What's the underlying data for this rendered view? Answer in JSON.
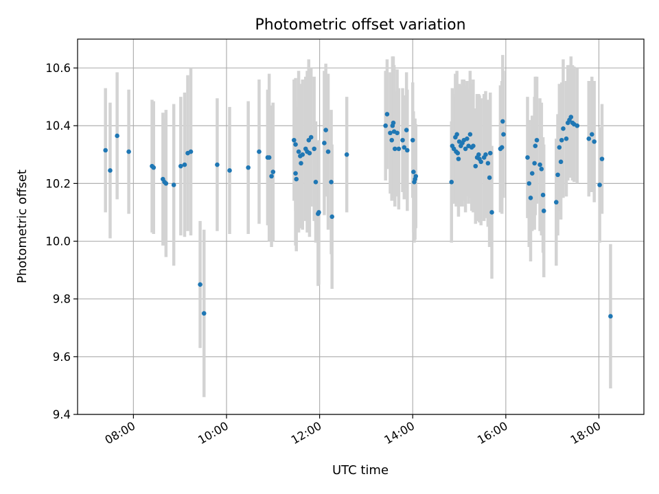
{
  "chart_data": {
    "type": "scatter",
    "title": "Photometric offset variation",
    "xlabel": "UTC time",
    "ylabel": "Photometric offset",
    "xlim": [
      "06:48",
      "18:58"
    ],
    "ylim": [
      9.4,
      10.7
    ],
    "xticks": [
      "08:00",
      "10:00",
      "12:00",
      "14:00",
      "16:00",
      "18:00"
    ],
    "yticks": [
      "9.4",
      "9.6",
      "9.8",
      "10.0",
      "10.2",
      "10.4",
      "10.6"
    ],
    "grid": true,
    "colors": {
      "points": "#1f77b4",
      "errorbars": "#d3d3d3",
      "grid": "#b0b0b0"
    },
    "points": [
      {
        "t": "07:24",
        "y": 10.315,
        "err": 0.215
      },
      {
        "t": "07:30",
        "y": 10.245,
        "err": 0.235
      },
      {
        "t": "07:39",
        "y": 10.365,
        "err": 0.22
      },
      {
        "t": "07:54",
        "y": 10.31,
        "err": 0.215
      },
      {
        "t": "08:24",
        "y": 10.26,
        "err": 0.23
      },
      {
        "t": "08:26",
        "y": 10.255,
        "err": 0.23
      },
      {
        "t": "08:38",
        "y": 10.215,
        "err": 0.23
      },
      {
        "t": "08:40",
        "y": 10.205,
        "err": 0.22
      },
      {
        "t": "08:42",
        "y": 10.2,
        "err": 0.255
      },
      {
        "t": "08:52",
        "y": 10.195,
        "err": 0.28
      },
      {
        "t": "09:01",
        "y": 10.26,
        "err": 0.24
      },
      {
        "t": "09:06",
        "y": 10.265,
        "err": 0.25
      },
      {
        "t": "09:10",
        "y": 10.305,
        "err": 0.27
      },
      {
        "t": "09:14",
        "y": 10.31,
        "err": 0.29
      },
      {
        "t": "09:26",
        "y": 9.85,
        "err": 0.22
      },
      {
        "t": "09:31",
        "y": 9.75,
        "err": 0.29
      },
      {
        "t": "09:48",
        "y": 10.265,
        "err": 0.23
      },
      {
        "t": "10:04",
        "y": 10.245,
        "err": 0.22
      },
      {
        "t": "10:28",
        "y": 10.255,
        "err": 0.23
      },
      {
        "t": "10:42",
        "y": 10.31,
        "err": 0.25
      },
      {
        "t": "10:53",
        "y": 10.29,
        "err": 0.235
      },
      {
        "t": "10:55",
        "y": 10.29,
        "err": 0.29
      },
      {
        "t": "10:58",
        "y": 10.225,
        "err": 0.245
      },
      {
        "t": "11:00",
        "y": 10.24,
        "err": 0.24
      },
      {
        "t": "11:27",
        "y": 10.35,
        "err": 0.21
      },
      {
        "t": "11:29",
        "y": 10.335,
        "err": 0.23
      },
      {
        "t": "11:29",
        "y": 10.235,
        "err": 0.25
      },
      {
        "t": "11:30",
        "y": 10.215,
        "err": 0.25
      },
      {
        "t": "11:33",
        "y": 10.31,
        "err": 0.28
      },
      {
        "t": "11:35",
        "y": 10.295,
        "err": 0.25
      },
      {
        "t": "11:36",
        "y": 10.27,
        "err": 0.2
      },
      {
        "t": "11:38",
        "y": 10.3,
        "err": 0.26
      },
      {
        "t": "11:42",
        "y": 10.32,
        "err": 0.25
      },
      {
        "t": "11:44",
        "y": 10.31,
        "err": 0.28
      },
      {
        "t": "11:46",
        "y": 10.35,
        "err": 0.28
      },
      {
        "t": "11:47",
        "y": 10.305,
        "err": 0.29
      },
      {
        "t": "11:49",
        "y": 10.36,
        "err": 0.24
      },
      {
        "t": "11:53",
        "y": 10.32,
        "err": 0.25
      },
      {
        "t": "11:55",
        "y": 10.205,
        "err": 0.21
      },
      {
        "t": "11:58",
        "y": 10.095,
        "err": 0.25
      },
      {
        "t": "11:59",
        "y": 10.1,
        "err": 0.25
      },
      {
        "t": "12:06",
        "y": 10.34,
        "err": 0.25
      },
      {
        "t": "12:08",
        "y": 10.385,
        "err": 0.23
      },
      {
        "t": "12:11",
        "y": 10.31,
        "err": 0.27
      },
      {
        "t": "12:15",
        "y": 10.205,
        "err": 0.25
      },
      {
        "t": "12:16",
        "y": 10.085,
        "err": 0.25
      },
      {
        "t": "12:35",
        "y": 10.3,
        "err": 0.2
      },
      {
        "t": "13:25",
        "y": 10.4,
        "err": 0.19
      },
      {
        "t": "13:27",
        "y": 10.44,
        "err": 0.19
      },
      {
        "t": "13:31",
        "y": 10.375,
        "err": 0.21
      },
      {
        "t": "13:33",
        "y": 10.35,
        "err": 0.21
      },
      {
        "t": "13:34",
        "y": 10.4,
        "err": 0.24
      },
      {
        "t": "13:35",
        "y": 10.41,
        "err": 0.23
      },
      {
        "t": "13:36",
        "y": 10.38,
        "err": 0.23
      },
      {
        "t": "13:37",
        "y": 10.32,
        "err": 0.2
      },
      {
        "t": "13:40",
        "y": 10.375,
        "err": 0.22
      },
      {
        "t": "13:42",
        "y": 10.32,
        "err": 0.21
      },
      {
        "t": "13:47",
        "y": 10.35,
        "err": 0.18
      },
      {
        "t": "13:49",
        "y": 10.325,
        "err": 0.18
      },
      {
        "t": "13:52",
        "y": 10.385,
        "err": 0.2
      },
      {
        "t": "13:53",
        "y": 10.315,
        "err": 0.21
      },
      {
        "t": "14:00",
        "y": 10.35,
        "err": 0.2
      },
      {
        "t": "14:01",
        "y": 10.24,
        "err": 0.21
      },
      {
        "t": "14:02",
        "y": 10.205,
        "err": 0.21
      },
      {
        "t": "14:03",
        "y": 10.215,
        "err": 0.21
      },
      {
        "t": "14:04",
        "y": 10.225,
        "err": 0.18
      },
      {
        "t": "14:50",
        "y": 10.205,
        "err": 0.21
      },
      {
        "t": "14:51",
        "y": 10.33,
        "err": 0.2
      },
      {
        "t": "14:53",
        "y": 10.32,
        "err": 0.19
      },
      {
        "t": "14:55",
        "y": 10.36,
        "err": 0.22
      },
      {
        "t": "14:56",
        "y": 10.31,
        "err": 0.19
      },
      {
        "t": "14:57",
        "y": 10.37,
        "err": 0.22
      },
      {
        "t": "14:58",
        "y": 10.305,
        "err": 0.18
      },
      {
        "t": "14:59",
        "y": 10.285,
        "err": 0.2
      },
      {
        "t": "15:00",
        "y": 10.345,
        "err": 0.2
      },
      {
        "t": "15:02",
        "y": 10.33,
        "err": 0.21
      },
      {
        "t": "15:04",
        "y": 10.34,
        "err": 0.22
      },
      {
        "t": "15:06",
        "y": 10.35,
        "err": 0.21
      },
      {
        "t": "15:08",
        "y": 10.32,
        "err": 0.22
      },
      {
        "t": "15:10",
        "y": 10.355,
        "err": 0.2
      },
      {
        "t": "15:12",
        "y": 10.33,
        "err": 0.2
      },
      {
        "t": "15:14",
        "y": 10.37,
        "err": 0.22
      },
      {
        "t": "15:16",
        "y": 10.325,
        "err": 0.22
      },
      {
        "t": "15:18",
        "y": 10.33,
        "err": 0.23
      },
      {
        "t": "15:21",
        "y": 10.26,
        "err": 0.2
      },
      {
        "t": "15:23",
        "y": 10.29,
        "err": 0.22
      },
      {
        "t": "15:25",
        "y": 10.3,
        "err": 0.21
      },
      {
        "t": "15:26",
        "y": 10.285,
        "err": 0.22
      },
      {
        "t": "15:28",
        "y": 10.275,
        "err": 0.22
      },
      {
        "t": "15:32",
        "y": 10.29,
        "err": 0.22
      },
      {
        "t": "15:34",
        "y": 10.3,
        "err": 0.22
      },
      {
        "t": "15:37",
        "y": 10.27,
        "err": 0.22
      },
      {
        "t": "15:39",
        "y": 10.22,
        "err": 0.24
      },
      {
        "t": "15:40",
        "y": 10.305,
        "err": 0.21
      },
      {
        "t": "15:42",
        "y": 10.1,
        "err": 0.23
      },
      {
        "t": "15:53",
        "y": 10.32,
        "err": 0.22
      },
      {
        "t": "15:55",
        "y": 10.325,
        "err": 0.23
      },
      {
        "t": "15:56",
        "y": 10.415,
        "err": 0.23
      },
      {
        "t": "15:57",
        "y": 10.37,
        "err": 0.22
      },
      {
        "t": "16:28",
        "y": 10.29,
        "err": 0.21
      },
      {
        "t": "16:30",
        "y": 10.2,
        "err": 0.22
      },
      {
        "t": "16:32",
        "y": 10.15,
        "err": 0.22
      },
      {
        "t": "16:34",
        "y": 10.235,
        "err": 0.2
      },
      {
        "t": "16:37",
        "y": 10.27,
        "err": 0.23
      },
      {
        "t": "16:38",
        "y": 10.33,
        "err": 0.24
      },
      {
        "t": "16:40",
        "y": 10.35,
        "err": 0.22
      },
      {
        "t": "16:44",
        "y": 10.265,
        "err": 0.23
      },
      {
        "t": "16:46",
        "y": 10.25,
        "err": 0.23
      },
      {
        "t": "16:48",
        "y": 10.16,
        "err": 0.2
      },
      {
        "t": "16:49",
        "y": 10.105,
        "err": 0.23
      },
      {
        "t": "17:05",
        "y": 10.135,
        "err": 0.22
      },
      {
        "t": "17:07",
        "y": 10.23,
        "err": 0.21
      },
      {
        "t": "17:09",
        "y": 10.325,
        "err": 0.22
      },
      {
        "t": "17:11",
        "y": 10.275,
        "err": 0.2
      },
      {
        "t": "17:12",
        "y": 10.35,
        "err": 0.2
      },
      {
        "t": "17:14",
        "y": 10.39,
        "err": 0.24
      },
      {
        "t": "17:18",
        "y": 10.355,
        "err": 0.2
      },
      {
        "t": "17:20",
        "y": 10.41,
        "err": 0.2
      },
      {
        "t": "17:22",
        "y": 10.42,
        "err": 0.19
      },
      {
        "t": "17:24",
        "y": 10.43,
        "err": 0.21
      },
      {
        "t": "17:26",
        "y": 10.41,
        "err": 0.2
      },
      {
        "t": "17:28",
        "y": 10.405,
        "err": 0.2
      },
      {
        "t": "17:32",
        "y": 10.4,
        "err": 0.2
      },
      {
        "t": "17:47",
        "y": 10.355,
        "err": 0.2
      },
      {
        "t": "17:51",
        "y": 10.37,
        "err": 0.2
      },
      {
        "t": "17:54",
        "y": 10.345,
        "err": 0.21
      },
      {
        "t": "18:01",
        "y": 10.195,
        "err": 0.2
      },
      {
        "t": "18:04",
        "y": 10.285,
        "err": 0.19
      },
      {
        "t": "18:15",
        "y": 9.74,
        "err": 0.25
      }
    ]
  }
}
